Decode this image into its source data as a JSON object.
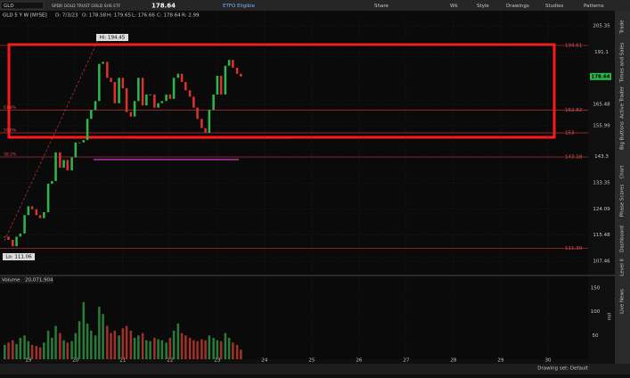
{
  "toolbar": {
    "symbol": "GLD",
    "description": "SPDR GOLD TRUST GOLD SHS ETF",
    "price": "178.64",
    "badge": "ETFO Eligible",
    "buttons": [
      "Share",
      "Wk",
      "Style",
      "Drawings",
      "Studies",
      "Patterns"
    ]
  },
  "header": {
    "study": "GLD 5 Y W [NYSE]",
    "fields": [
      "D: 7/3/23",
      "O: 178.58",
      "H: 179.65",
      "L: 176.66",
      "C: 178.64",
      "R: 2.99"
    ]
  },
  "chart_data": {
    "type": "candlestick",
    "log_scale": true,
    "grid": true,
    "ylim": [
      103.6,
      214.1
    ],
    "yticks": [
      205.35,
      191.1,
      165.48,
      155.99,
      143.3,
      133.35,
      124.09,
      115.48,
      107.46
    ],
    "last_price": 178.64,
    "xlim": [
      18.4,
      30.85
    ],
    "xticks": [
      19,
      20,
      21,
      22,
      23,
      24,
      25,
      26,
      27,
      28,
      29,
      30
    ],
    "x": [
      18.5,
      18.58,
      18.67,
      18.75,
      18.83,
      18.92,
      19,
      19.08,
      19.17,
      19.25,
      19.33,
      19.42,
      19.5,
      19.58,
      19.67,
      19.75,
      19.83,
      19.92,
      20,
      20.08,
      20.17,
      20.25,
      20.33,
      20.42,
      20.5,
      20.58,
      20.67,
      20.75,
      20.83,
      20.92,
      21,
      21.08,
      21.17,
      21.25,
      21.33,
      21.42,
      21.5,
      21.58,
      21.67,
      21.75,
      21.83,
      21.92,
      22,
      22.08,
      22.17,
      22.25,
      22.33,
      22.42,
      22.5,
      22.58,
      22.67,
      22.75,
      22.83,
      22.92,
      23,
      23.08,
      23.17,
      23.25,
      23.33,
      23.42,
      23.5
    ],
    "close": [
      115,
      114,
      112,
      115,
      116,
      122,
      125,
      124,
      122,
      121,
      123,
      133,
      134,
      145,
      139,
      142,
      138,
      143,
      149,
      149,
      150,
      159,
      163,
      167,
      185,
      186,
      178,
      176,
      166,
      178,
      173,
      162,
      160,
      167,
      178,
      165,
      170,
      170,
      164,
      166,
      167,
      170,
      168,
      178,
      180,
      176,
      172,
      169,
      164,
      159,
      155,
      153,
      163,
      170,
      179,
      170,
      184,
      187,
      183,
      180,
      178.64
    ],
    "volume": [
      30,
      35,
      40,
      32,
      45,
      50,
      38,
      30,
      28,
      25,
      35,
      60,
      45,
      70,
      55,
      40,
      35,
      38,
      55,
      80,
      120,
      75,
      60,
      50,
      110,
      95,
      70,
      55,
      60,
      50,
      65,
      70,
      60,
      45,
      50,
      55,
      40,
      38,
      45,
      42,
      40,
      35,
      45,
      60,
      75,
      55,
      50,
      45,
      40,
      38,
      42,
      40,
      50,
      45,
      40,
      38,
      55,
      45,
      35,
      30,
      20.071904
    ],
    "vlim": [
      0,
      174
    ],
    "vticks": [
      50,
      100,
      150
    ],
    "volume_unit": "mil",
    "volume_title": "Volume",
    "volume_last": "20,071,904",
    "fib_levels": [
      194.61,
      162.82,
      153,
      143.18,
      111.39
    ],
    "fib_pct": [
      {
        "level": 162.82,
        "label": "61.8%"
      },
      {
        "level": 153,
        "label": "50.0%"
      },
      {
        "level": 143.18,
        "label": "38.2%"
      }
    ],
    "hi_label": "Hi: 194.45",
    "lo_label": "Lo: 111.06"
  },
  "tabs": [
    "Trade",
    "Times and Sales",
    "Active Trader",
    "Big Buttons",
    "Chart",
    "Phase Scores",
    "Dashboard",
    "Level II",
    "Live News"
  ],
  "footer": {
    "drawing_set": "Drawing set: Default"
  }
}
